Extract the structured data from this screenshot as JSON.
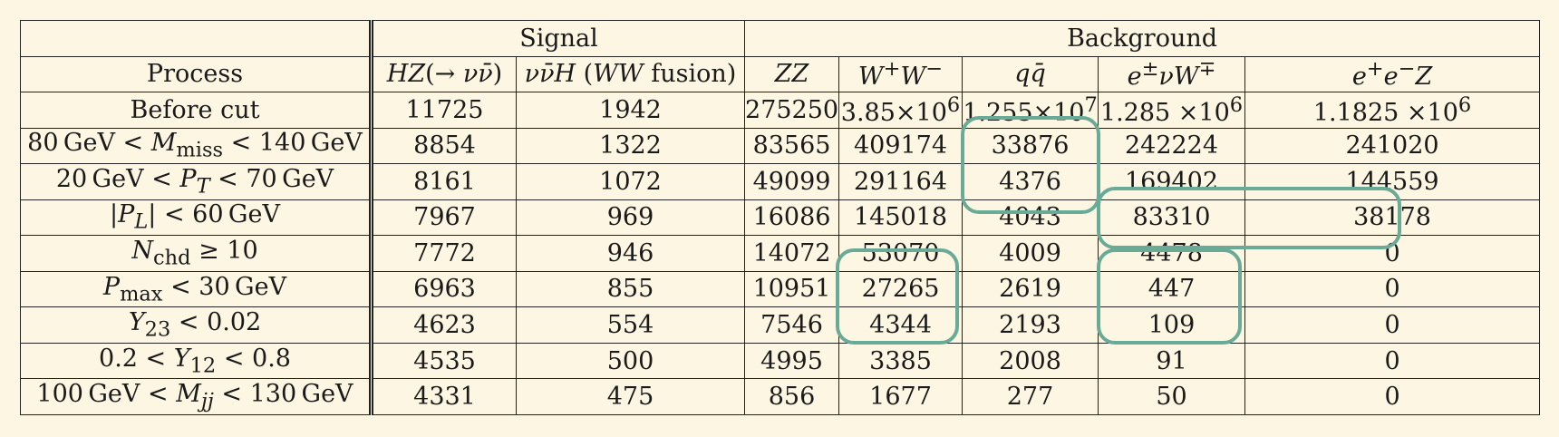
{
  "header": {
    "signal": "Signal",
    "background": "Background",
    "process": "Process",
    "columns": [
      "HZ(→ νν̄)",
      "νν̄H (WW fusion)",
      "ZZ",
      "W⁺W⁻",
      "qq̄",
      "e±νW∓",
      "e⁺e⁻Z"
    ]
  },
  "rows": [
    {
      "label": "Before cut",
      "values": [
        "11725",
        "1942",
        "275250",
        "3.85×10⁶",
        "1.255×10⁷",
        "1.285 ×10⁶",
        "1.1825 ×10⁶"
      ]
    },
    {
      "label": "80 GeV < Mmiss < 140 GeV",
      "values": [
        "8854",
        "1322",
        "83565",
        "409174",
        "33876",
        "242224",
        "241020"
      ]
    },
    {
      "label": "20 GeV < PT < 70 GeV",
      "values": [
        "8161",
        "1072",
        "49099",
        "291164",
        "4376",
        "169402",
        "144559"
      ]
    },
    {
      "label": "|PL| < 60 GeV",
      "values": [
        "7967",
        "969",
        "16086",
        "145018",
        "4043",
        "83310",
        "38178"
      ]
    },
    {
      "label": "Nchd ≥ 10",
      "values": [
        "7772",
        "946",
        "14072",
        "53070",
        "4009",
        "4478",
        "0"
      ]
    },
    {
      "label": "Pmax < 30 GeV",
      "values": [
        "6963",
        "855",
        "10951",
        "27265",
        "2619",
        "447",
        "0"
      ]
    },
    {
      "label": "Y23 < 0.02",
      "values": [
        "4623",
        "554",
        "7546",
        "4344",
        "2193",
        "109",
        "0"
      ]
    },
    {
      "label": "0.2 < Y12 < 0.8",
      "values": [
        "4535",
        "500",
        "4995",
        "3385",
        "2008",
        "91",
        "0"
      ]
    },
    {
      "label": "100 GeV < Mjj < 130 GeV",
      "values": [
        "4331",
        "475",
        "856",
        "1677",
        "277",
        "50",
        "0"
      ]
    }
  ],
  "highlight_color": "#6aab98"
}
